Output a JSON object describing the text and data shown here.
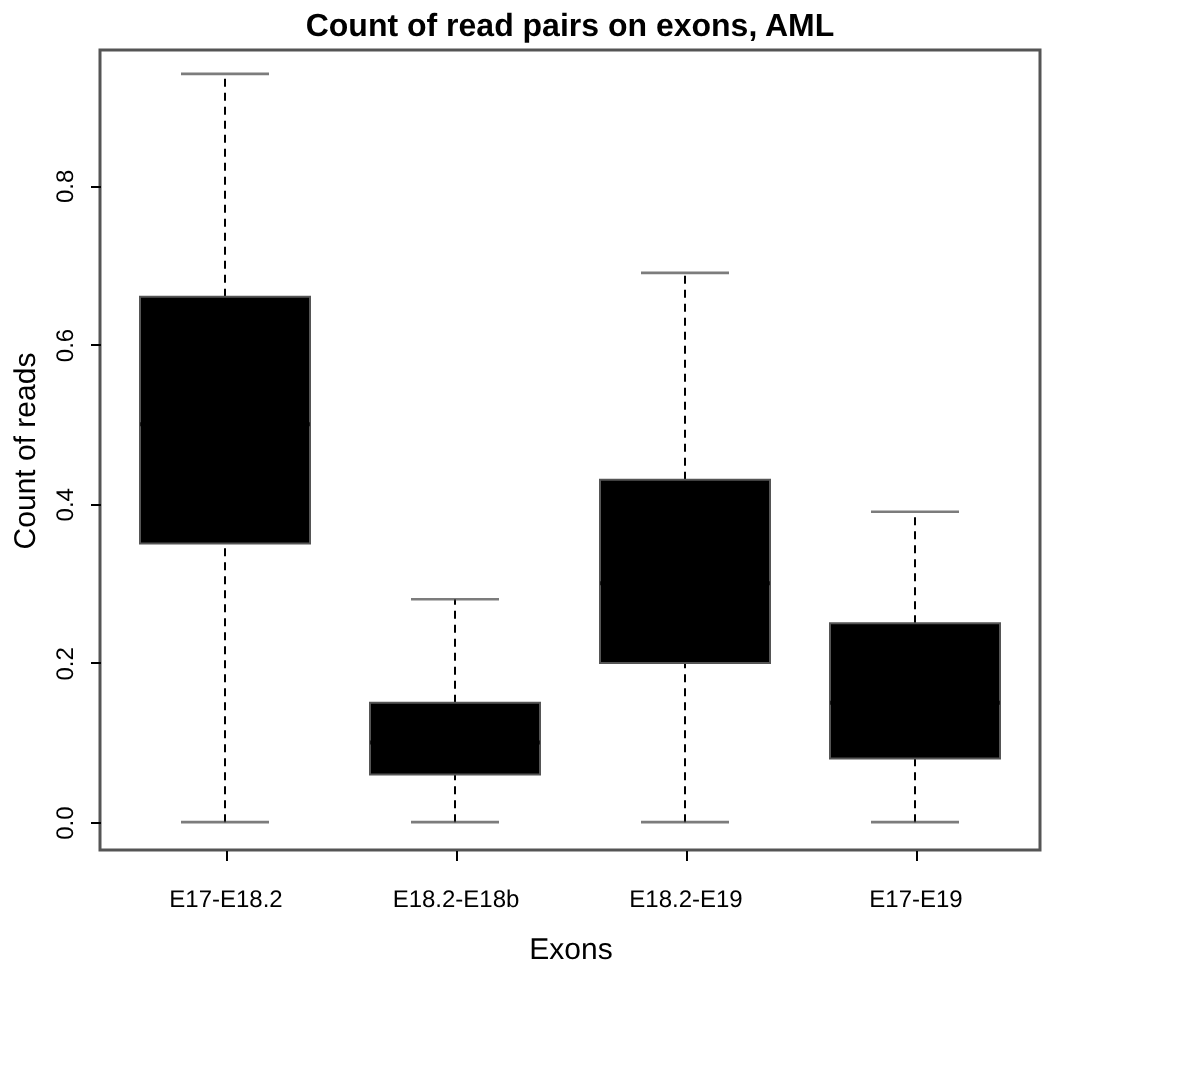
{
  "chart_data": {
    "type": "box",
    "title": "Count of read pairs on exons, AML",
    "xlabel": "Exons",
    "ylabel": "Count of reads",
    "categories": [
      "E17-E18.2",
      "E18.2-E18b",
      "E18.2-E19",
      "E17-E19"
    ],
    "boxes": [
      {
        "low": 0,
        "q1": 0.35,
        "median": 0.5,
        "q3": 0.66,
        "high": 0.94
      },
      {
        "low": 0,
        "q1": 0.06,
        "median": 0.1,
        "q3": 0.15,
        "high": 0.28
      },
      {
        "low": 0,
        "q1": 0.2,
        "median": 0.3,
        "q3": 0.43,
        "high": 0.69
      },
      {
        "low": 0,
        "q1": 0.08,
        "median": 0.15,
        "q3": 0.25,
        "high": 0.39
      }
    ],
    "color": "#000000",
    "ylim": [
      -0.035,
      0.97
    ],
    "yticks": [
      {
        "value": 0,
        "label": "0.0"
      },
      0.2,
      0.4,
      0.6,
      0.8
    ],
    "grid": false,
    "line_style": "dashed"
  }
}
